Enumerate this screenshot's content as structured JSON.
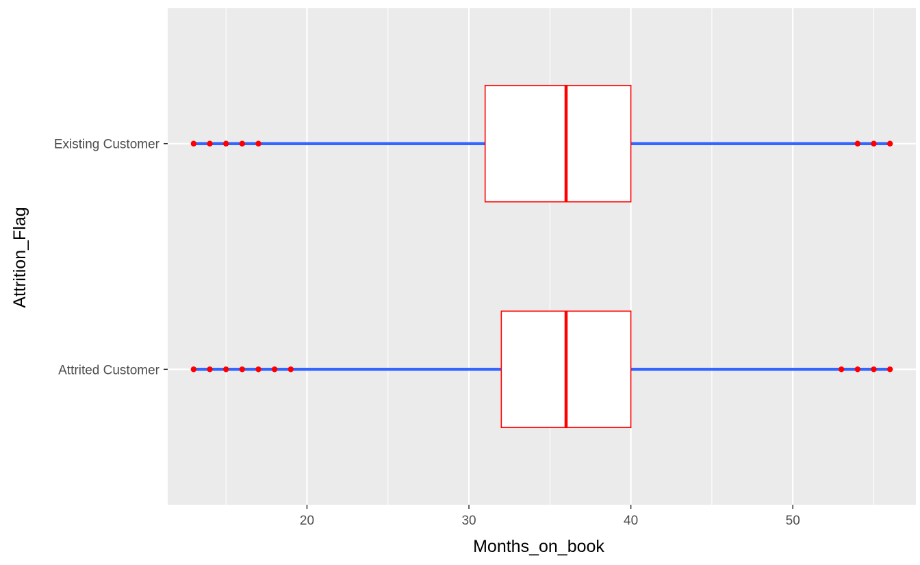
{
  "chart_data": {
    "type": "boxplot",
    "orientation": "horizontal",
    "title": "",
    "xlabel": "Months_on_book",
    "ylabel": "Attrition_Flag",
    "xlim": [
      11.4,
      57.6
    ],
    "x_ticks": [
      20,
      30,
      40,
      50
    ],
    "x_tick_labels": [
      "20",
      "30",
      "40",
      "50"
    ],
    "grid": true,
    "legend": "none",
    "categories": [
      "Attrited Customer",
      "Existing Customer"
    ],
    "boxes": [
      {
        "category": "Attrited Customer",
        "q1": 32,
        "median": 36,
        "q3": 40,
        "whisker_low": 13,
        "whisker_high": 56,
        "outliers": [
          13,
          14,
          15,
          16,
          17,
          18,
          19,
          53,
          54,
          55,
          56
        ]
      },
      {
        "category": "Existing Customer",
        "q1": 31,
        "median": 36,
        "q3": 40,
        "whisker_low": 13,
        "whisker_high": 56,
        "outliers": [
          13,
          14,
          15,
          16,
          17,
          54,
          55,
          56
        ]
      }
    ],
    "colors": {
      "panel_background": "#ebebeb",
      "grid": "#ffffff",
      "box_outline": "#ff0000",
      "box_fill": "#ffffff",
      "whisker": "#3366ff",
      "outlier": "#ff0000"
    }
  }
}
